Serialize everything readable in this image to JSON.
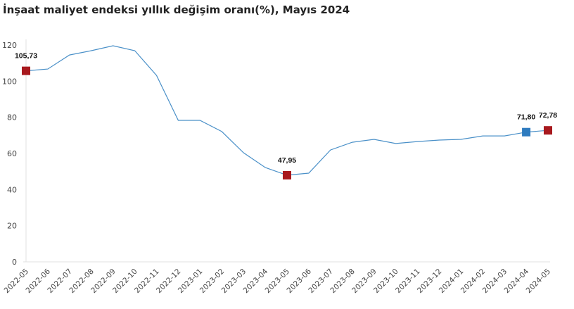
{
  "title": "İnşaat maliyet endeksi yıllık değişim oranı(%), Mayıs 2024",
  "colors": {
    "line": "#4a90c8",
    "highlight_red": "#a8191e",
    "highlight_blue": "#2e7bbf",
    "axis": "#e2e2e2"
  },
  "chart_data": {
    "type": "line",
    "title": "İnşaat maliyet endeksi yıllık değişim oranı(%), Mayıs 2024",
    "xlabel": "",
    "ylabel": "",
    "ylim": [
      0,
      120
    ],
    "yticks": [
      0,
      20,
      40,
      60,
      80,
      100,
      120
    ],
    "grid": false,
    "legend": null,
    "categories": [
      "2022-05",
      "2022-06",
      "2022-07",
      "2022-08",
      "2022-09",
      "2022-10",
      "2022-11",
      "2022-12",
      "2023-01",
      "2023-02",
      "2023-03",
      "2023-04",
      "2023-05",
      "2023-06",
      "2023-07",
      "2023-08",
      "2023-09",
      "2023-10",
      "2023-11",
      "2023-12",
      "2024-01",
      "2024-02",
      "2024-03",
      "2024-04",
      "2024-05"
    ],
    "series": [
      {
        "name": "Yıllık değişim oranı (%)",
        "values": [
          105.73,
          106.7,
          114.5,
          116.9,
          119.6,
          116.9,
          103.2,
          78.3,
          78.3,
          72.1,
          60.4,
          52.2,
          47.95,
          49.1,
          61.9,
          66.2,
          67.8,
          65.5,
          66.6,
          67.4,
          67.8,
          69.7,
          69.7,
          71.8,
          72.78
        ]
      }
    ],
    "annotations": [
      {
        "category": "2022-05",
        "label": "105,73",
        "value": 105.73,
        "marker_color": "#a8191e"
      },
      {
        "category": "2023-05",
        "label": "47,95",
        "value": 47.95,
        "marker_color": "#a8191e"
      },
      {
        "category": "2024-04",
        "label": "71,80",
        "value": 71.8,
        "marker_color": "#2e7bbf"
      },
      {
        "category": "2024-05",
        "label": "72,78",
        "value": 72.78,
        "marker_color": "#a8191e"
      }
    ]
  }
}
